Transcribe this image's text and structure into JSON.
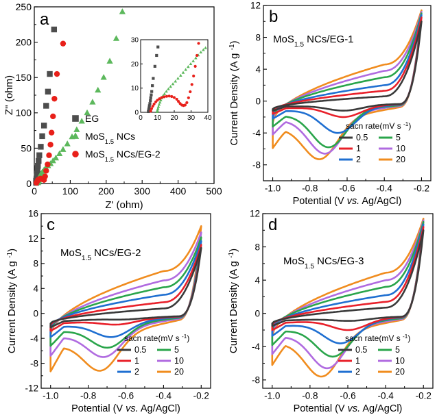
{
  "chart_data": [
    {
      "id": "a",
      "type": "scatter",
      "panel_label": "a",
      "xlabel": "Z' (ohm)",
      "ylabel": "Z'' (ohm)",
      "xlim": [
        0,
        500
      ],
      "ylim": [
        0,
        250
      ],
      "xticks": [
        0,
        100,
        200,
        300,
        400,
        500
      ],
      "yticks": [
        0,
        50,
        100,
        150,
        200,
        250
      ],
      "legend": [
        {
          "label": "EG",
          "marker": "square",
          "color": "#4d4d4d"
        },
        {
          "label": "MoS1.5 NCs",
          "marker": "triangle",
          "color": "#5cb85c"
        },
        {
          "label": "MoS1.5 NCs/EG-2",
          "marker": "circle",
          "color": "#e8201a"
        }
      ],
      "series": [
        {
          "name": "EG",
          "marker": "square",
          "color": "#4d4d4d",
          "points": [
            [
              5,
              1
            ],
            [
              5,
              4
            ],
            [
              6,
              7
            ],
            [
              7,
              10
            ],
            [
              8,
              14
            ],
            [
              9,
              20
            ],
            [
              10,
              25
            ],
            [
              12,
              32
            ],
            [
              14,
              40
            ],
            [
              18,
              52
            ],
            [
              22,
              67
            ],
            [
              27,
              82
            ],
            [
              33,
              110
            ],
            [
              38,
              130
            ],
            [
              43,
              155
            ],
            [
              55,
              218
            ]
          ]
        },
        {
          "name": "MoS1.5 NCs",
          "marker": "triangle",
          "color": "#5cb85c",
          "points": [
            [
              10,
              1
            ],
            [
              11,
              2
            ],
            [
              12,
              4
            ],
            [
              13,
              6
            ],
            [
              15,
              10
            ],
            [
              18,
              13
            ],
            [
              22,
              16
            ],
            [
              27,
              19
            ],
            [
              32,
              22
            ],
            [
              38,
              25
            ],
            [
              45,
              28
            ],
            [
              52,
              32
            ],
            [
              60,
              36
            ],
            [
              70,
              42
            ],
            [
              80,
              48
            ],
            [
              92,
              56
            ],
            [
              105,
              66
            ],
            [
              118,
              76
            ],
            [
              132,
              88
            ],
            [
              147,
              100
            ],
            [
              162,
              115
            ],
            [
              177,
              132
            ],
            [
              193,
              150
            ],
            [
              210,
              173
            ],
            [
              228,
              205
            ],
            [
              245,
              243
            ]
          ]
        },
        {
          "name": "MoS1.5 NCs/EG-2",
          "marker": "circle",
          "color": "#e8201a",
          "points": [
            [
              6,
              1
            ],
            [
              8,
              3
            ],
            [
              10,
              5
            ],
            [
              13,
              6
            ],
            [
              17,
              7
            ],
            [
              22,
              6
            ],
            [
              27,
              5
            ],
            [
              30,
              10
            ],
            [
              33,
              18
            ],
            [
              37,
              27
            ],
            [
              41,
              40
            ],
            [
              45,
              55
            ],
            [
              48,
              72
            ],
            [
              52,
              95
            ],
            [
              56,
              120
            ],
            [
              63,
              155
            ],
            [
              80,
              198
            ]
          ]
        }
      ],
      "inset": {
        "xlim": [
          0,
          40
        ],
        "ylim": [
          0,
          30
        ],
        "xticks": [
          0,
          10,
          20,
          30,
          40
        ],
        "yticks": [
          0,
          10,
          20,
          30
        ],
        "series": [
          {
            "name": "EG",
            "marker": "square",
            "color": "#4d4d4d",
            "points": [
              [
                4.6,
                0.3
              ],
              [
                4.8,
                1
              ],
              [
                5,
                1.8
              ],
              [
                5.2,
                2.7
              ],
              [
                5.5,
                3.6
              ],
              [
                5.8,
                4.8
              ],
              [
                6,
                6
              ],
              [
                6.3,
                7.2
              ],
              [
                6.6,
                8.6
              ],
              [
                7,
                11
              ],
              [
                7.5,
                14
              ],
              [
                8.5,
                19
              ],
              [
                9.5,
                23.5
              ],
              [
                10.3,
                27
              ]
            ]
          },
          {
            "name": "MoS1.5 NCs",
            "marker": "triangle",
            "color": "#5cb85c",
            "points": [
              [
                9.8,
                0.2
              ],
              [
                10,
                0.8
              ],
              [
                10.3,
                1.5
              ],
              [
                10.6,
                2.3
              ],
              [
                11,
                3.2
              ],
              [
                11.5,
                4.1
              ],
              [
                12,
                5
              ],
              [
                12.6,
                5.9
              ],
              [
                13.3,
                6.8
              ],
              [
                14.2,
                7.6
              ],
              [
                15.3,
                8.6
              ],
              [
                16.5,
                9.6
              ],
              [
                17.8,
                10.6
              ],
              [
                19.2,
                11.7
              ],
              [
                20.7,
                12.8
              ],
              [
                22.2,
                14
              ],
              [
                23.8,
                15.2
              ],
              [
                25.3,
                16.4
              ],
              [
                26.8,
                17.6
              ],
              [
                28.3,
                18.8
              ],
              [
                29.8,
                20
              ],
              [
                31.3,
                21.2
              ],
              [
                32.8,
                22.4
              ],
              [
                34.3,
                23.6
              ],
              [
                35.8,
                24.8
              ],
              [
                37.3,
                25.8
              ],
              [
                38.6,
                26.6
              ]
            ]
          },
          {
            "name": "MoS1.5 NCs/EG-2",
            "marker": "circle",
            "color": "#e8201a",
            "points": [
              [
                6,
                0.5
              ],
              [
                6.5,
                1.5
              ],
              [
                7.2,
                2.5
              ],
              [
                8,
                3.4
              ],
              [
                9,
                4.3
              ],
              [
                10,
                5
              ],
              [
                11.2,
                5.6
              ],
              [
                12.5,
                6.1
              ],
              [
                14,
                6.4
              ],
              [
                15.5,
                6.6
              ],
              [
                17,
                6.7
              ],
              [
                18.5,
                6.5
              ],
              [
                20,
                6.1
              ],
              [
                21.5,
                5.4
              ],
              [
                22.5,
                4.5
              ],
              [
                23.5,
                3.6
              ],
              [
                24.5,
                3
              ],
              [
                25.5,
                2.8
              ],
              [
                26.5,
                3
              ],
              [
                27.5,
                4
              ],
              [
                28.5,
                6
              ],
              [
                29.5,
                8.5
              ],
              [
                30.5,
                11.5
              ],
              [
                31.5,
                15
              ],
              [
                32.5,
                19
              ],
              [
                33.5,
                23.5
              ],
              [
                34.5,
                28.5
              ]
            ]
          }
        ]
      }
    },
    {
      "id": "b",
      "type": "line",
      "panel_label": "b",
      "annotation": "MoS1.5 NCs/EG-1",
      "xlabel": "Potential (V vs. Ag/AgCl)",
      "ylabel": "Current Density (A g-1)",
      "xlim": [
        -1.05,
        -0.15
      ],
      "ylim": [
        -10,
        12
      ],
      "xticks": [
        -1.0,
        -0.8,
        -0.6,
        -0.4,
        -0.2
      ],
      "yticks": [
        -8,
        -4,
        0,
        4,
        8,
        12
      ],
      "legend_title": "sacn rate(mV s-1)",
      "series": [
        {
          "name": "0.5",
          "color": "#3a3a3a",
          "peak_x": -0.62,
          "peak_y": -1.2,
          "lower_start": -1.2,
          "upper_start": -1.0,
          "upper_mid": 0.2,
          "upper_at_neg04": 0.6,
          "end": 10.0
        },
        {
          "name": "1",
          "color": "#e8202a",
          "peak_x": -0.62,
          "peak_y": -2.0,
          "lower_start": -1.6,
          "upper_start": -1.2,
          "upper_mid": 0.6,
          "upper_at_neg04": 1.3,
          "end": 10.5
        },
        {
          "name": "2",
          "color": "#1f6fd1",
          "peak_x": -0.65,
          "peak_y": -4.0,
          "lower_start": -2.2,
          "upper_start": -1.5,
          "upper_mid": 1.0,
          "upper_at_neg04": 2.0,
          "end": 10.8
        },
        {
          "name": "5",
          "color": "#2aa54b",
          "peak_x": -0.7,
          "peak_y": -5.8,
          "lower_start": -3.2,
          "upper_start": -1.9,
          "upper_mid": 1.6,
          "upper_at_neg04": 3.0,
          "end": 11.0
        },
        {
          "name": "10",
          "color": "#b06be0",
          "peak_x": -0.72,
          "peak_y": -6.6,
          "lower_start": -4.2,
          "upper_start": -2.3,
          "upper_mid": 2.1,
          "upper_at_neg04": 3.8,
          "end": 11.2
        },
        {
          "name": "20",
          "color": "#f08c1e",
          "peak_x": -0.75,
          "peak_y": -7.3,
          "lower_start": -5.9,
          "upper_start": -2.7,
          "upper_mid": 2.8,
          "upper_at_neg04": 4.6,
          "end": 11.4
        }
      ]
    },
    {
      "id": "c",
      "type": "line",
      "panel_label": "c",
      "annotation": "MoS1.5 NCs/EG-2",
      "xlabel": "Potential (V vs. Ag/AgCl)",
      "ylabel": "Current Density (A g-1)",
      "xlim": [
        -1.05,
        -0.15
      ],
      "ylim": [
        -12,
        16
      ],
      "xticks": [
        -1.0,
        -0.8,
        -0.6,
        -0.4,
        -0.2
      ],
      "yticks": [
        -12,
        -8,
        -4,
        0,
        4,
        8,
        12,
        16
      ],
      "legend_title": "sacn rate(mV s-1)",
      "series": [
        {
          "name": "0.5",
          "color": "#3a3a3a",
          "peak_x": -0.65,
          "peak_y": -1.0,
          "lower_start": -2.2,
          "upper_start": -1.6,
          "upper_mid": 0.0,
          "upper_at_neg04": 0.8,
          "end": 10.5
        },
        {
          "name": "1",
          "color": "#e8202a",
          "peak_x": -0.66,
          "peak_y": -1.8,
          "lower_start": -2.8,
          "upper_start": -1.9,
          "upper_mid": 0.7,
          "upper_at_neg04": 1.8,
          "end": 11.0
        },
        {
          "name": "2",
          "color": "#1f6fd1",
          "peak_x": -0.68,
          "peak_y": -3.8,
          "lower_start": -3.8,
          "upper_start": -2.2,
          "upper_mid": 1.6,
          "upper_at_neg04": 3.0,
          "end": 11.6
        },
        {
          "name": "5",
          "color": "#2aa54b",
          "peak_x": -0.7,
          "peak_y": -5.5,
          "lower_start": -5.2,
          "upper_start": -2.6,
          "upper_mid": 2.5,
          "upper_at_neg04": 4.2,
          "end": 12.2
        },
        {
          "name": "10",
          "color": "#b06be0",
          "peak_x": -0.72,
          "peak_y": -7.0,
          "lower_start": -6.8,
          "upper_start": -3.0,
          "upper_mid": 3.3,
          "upper_at_neg04": 5.3,
          "end": 13.0
        },
        {
          "name": "20",
          "color": "#f08c1e",
          "peak_x": -0.74,
          "peak_y": -9.2,
          "lower_start": -9.3,
          "upper_start": -3.5,
          "upper_mid": 4.5,
          "upper_at_neg04": 6.8,
          "end": 14.0
        }
      ]
    },
    {
      "id": "d",
      "type": "line",
      "panel_label": "d",
      "annotation": "MoS1.5 NCs/EG-3",
      "xlabel": "Potential (V vs. Ag/AgCl)",
      "ylabel": "Current Density (A g-1)",
      "xlim": [
        -1.05,
        -0.15
      ],
      "ylim": [
        -9,
        12
      ],
      "xticks": [
        -1.0,
        -0.8,
        -0.6,
        -0.4,
        -0.2
      ],
      "yticks": [
        -8,
        -4,
        0,
        4,
        8,
        12
      ],
      "legend_title": "sacn rate(mV s-1)",
      "series": [
        {
          "name": "0.5",
          "color": "#3a3a3a",
          "peak_x": -0.6,
          "peak_y": -0.9,
          "lower_start": -1.5,
          "upper_start": -1.2,
          "upper_mid": 0.1,
          "upper_at_neg04": 0.7,
          "end": 10.0
        },
        {
          "name": "1",
          "color": "#e8202a",
          "peak_x": -0.6,
          "peak_y": -2.0,
          "lower_start": -2.0,
          "upper_start": -1.4,
          "upper_mid": 0.5,
          "upper_at_neg04": 1.4,
          "end": 10.4
        },
        {
          "name": "2",
          "color": "#1f6fd1",
          "peak_x": -0.64,
          "peak_y": -3.6,
          "lower_start": -2.7,
          "upper_start": -1.7,
          "upper_mid": 1.0,
          "upper_at_neg04": 2.2,
          "end": 10.7
        },
        {
          "name": "5",
          "color": "#2aa54b",
          "peak_x": -0.68,
          "peak_y": -5.2,
          "lower_start": -3.8,
          "upper_start": -2.0,
          "upper_mid": 1.6,
          "upper_at_neg04": 3.2,
          "end": 11.0
        },
        {
          "name": "10",
          "color": "#b06be0",
          "peak_x": -0.71,
          "peak_y": -6.6,
          "lower_start": -4.9,
          "upper_start": -2.4,
          "upper_mid": 2.2,
          "upper_at_neg04": 4.0,
          "end": 11.2
        },
        {
          "name": "20",
          "color": "#f08c1e",
          "peak_x": -0.74,
          "peak_y": -7.6,
          "lower_start": -6.2,
          "upper_start": -2.8,
          "upper_mid": 2.9,
          "upper_at_neg04": 4.9,
          "end": 11.4
        }
      ]
    }
  ]
}
